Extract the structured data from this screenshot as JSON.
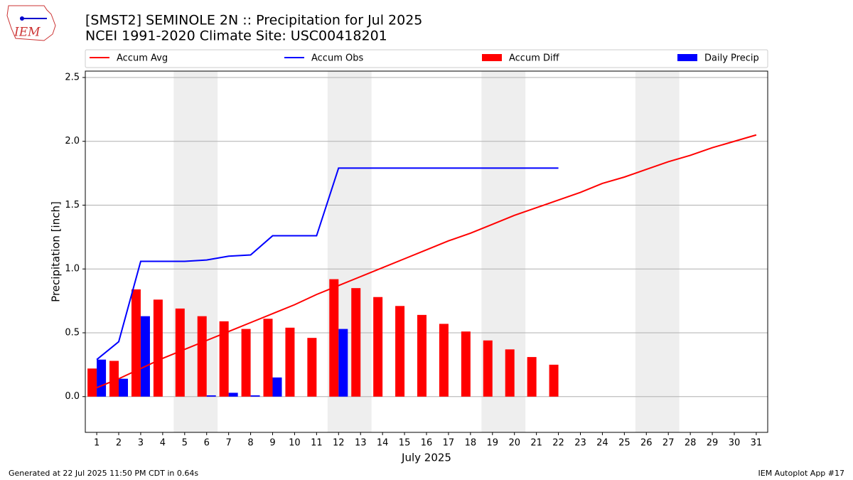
{
  "chart_data": {
    "type": "combo",
    "title": "[SMST2] SEMINOLE 2N :: Precipitation for Jul 2025",
    "subtitle": "NCEI 1991-2020 Climate Site: USC00418201",
    "y_label": "Precipitation [inch]",
    "x_label": "July 2025",
    "x": [
      1,
      2,
      3,
      4,
      5,
      6,
      7,
      8,
      9,
      10,
      11,
      12,
      13,
      14,
      15,
      16,
      17,
      18,
      19,
      20,
      21,
      22,
      23,
      24,
      25,
      26,
      27,
      28,
      29,
      30,
      31
    ],
    "xlim": [
      0.48,
      31.52
    ],
    "ylim": [
      -0.28,
      2.55
    ],
    "yticks": [
      {
        "value": 0,
        "label": "0.0"
      },
      0.5,
      {
        "value": 1,
        "label": "1.0"
      },
      1.5,
      {
        "value": 2,
        "label": "2.0"
      },
      2.5
    ],
    "grid": true,
    "weekend_spans": [
      [
        4.5,
        6.5
      ],
      [
        11.5,
        13.5
      ],
      [
        18.5,
        20.5
      ],
      [
        25.5,
        27.5
      ]
    ],
    "series": [
      {
        "name": "Accum Avg",
        "type": "line",
        "color": "#ff0000",
        "values": [
          0.07,
          0.14,
          0.22,
          0.3,
          0.37,
          0.44,
          0.51,
          0.58,
          0.65,
          0.72,
          0.8,
          0.87,
          0.94,
          1.01,
          1.08,
          1.15,
          1.22,
          1.28,
          1.35,
          1.42,
          1.48,
          1.54,
          1.6,
          1.67,
          1.72,
          1.78,
          1.84,
          1.89,
          1.95,
          2.0,
          2.05
        ]
      },
      {
        "name": "Accum Obs",
        "type": "line",
        "color": "#0000ff",
        "values": [
          0.29,
          0.43,
          1.06,
          1.06,
          1.06,
          1.07,
          1.1,
          1.11,
          1.26,
          1.26,
          1.26,
          1.79,
          1.79,
          1.79,
          1.79,
          1.79,
          1.79,
          1.79,
          1.79,
          1.79,
          1.79,
          1.79,
          null,
          null,
          null,
          null,
          null,
          null,
          null,
          null,
          null
        ]
      },
      {
        "name": "Accum Diff",
        "type": "bar",
        "color": "#ff0000",
        "values": [
          0.22,
          0.28,
          0.84,
          0.76,
          0.69,
          0.63,
          0.59,
          0.53,
          0.61,
          0.54,
          0.46,
          0.92,
          0.85,
          0.78,
          0.71,
          0.64,
          0.57,
          0.51,
          0.44,
          0.37,
          0.31,
          0.25,
          null,
          null,
          null,
          null,
          null,
          null,
          null,
          null,
          null
        ]
      },
      {
        "name": "Daily Precip",
        "type": "bar",
        "color": "#0000ff",
        "values": [
          0.29,
          0.14,
          0.63,
          0,
          0,
          0.01,
          0.03,
          0.01,
          0.15,
          0,
          0,
          0.53,
          0,
          0,
          0,
          0,
          0,
          0,
          0,
          0,
          0,
          0,
          null,
          null,
          null,
          null,
          null,
          null,
          null,
          null,
          null
        ]
      }
    ],
    "footer_left": "Generated at 22 Jul 2025 11:50 PM CDT in 0.64s",
    "footer_right": "IEM Autoplot App #17",
    "logo_text": "IEM"
  }
}
